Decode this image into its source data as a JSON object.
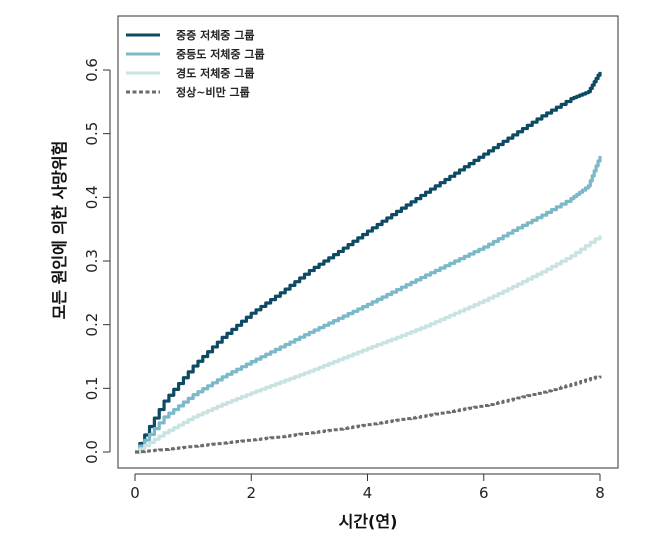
{
  "chart_data": {
    "type": "line",
    "title": "",
    "xlabel": "시간(연)",
    "ylabel": "모든 원인에 의한 사망위험",
    "xlim": [
      0,
      8
    ],
    "ylim": [
      0,
      0.6
    ],
    "x_ticks": [
      "0",
      "2",
      "4",
      "6",
      "8"
    ],
    "y_ticks": [
      "0.0",
      "0.1",
      "0.2",
      "0.3",
      "0.4",
      "0.5",
      "0.6"
    ],
    "legend_position": "top-left",
    "grid": false,
    "series": [
      {
        "name": "중증 저체중 그룹",
        "color": "#0d4a63",
        "dash": "solid",
        "x": [
          0,
          0.5,
          1,
          1.5,
          2,
          2.5,
          3,
          3.5,
          4,
          4.5,
          5,
          5.5,
          6,
          6.5,
          7,
          7.5,
          7.8,
          8
        ],
        "y": [
          0,
          0.08,
          0.135,
          0.18,
          0.218,
          0.25,
          0.285,
          0.315,
          0.347,
          0.378,
          0.408,
          0.438,
          0.468,
          0.498,
          0.528,
          0.555,
          0.566,
          0.597
        ]
      },
      {
        "name": "중등도 저체중 그룹",
        "color": "#7bb8c8",
        "dash": "solid",
        "x": [
          0,
          0.5,
          1,
          1.5,
          2,
          2.5,
          3,
          3.5,
          4,
          4.5,
          5,
          5.5,
          6,
          6.5,
          7,
          7.5,
          7.8,
          8
        ],
        "y": [
          0,
          0.055,
          0.09,
          0.118,
          0.142,
          0.165,
          0.188,
          0.21,
          0.232,
          0.255,
          0.278,
          0.3,
          0.322,
          0.348,
          0.372,
          0.398,
          0.418,
          0.465
        ]
      },
      {
        "name": "경도 저체중 그룹",
        "color": "#c9e3e3",
        "dash": "solid",
        "x": [
          0,
          0.5,
          1,
          1.5,
          2,
          2.5,
          3,
          3.5,
          4,
          4.5,
          5,
          5.5,
          6,
          6.5,
          7,
          7.5,
          8
        ],
        "y": [
          0,
          0.03,
          0.055,
          0.075,
          0.093,
          0.11,
          0.127,
          0.145,
          0.163,
          0.18,
          0.198,
          0.218,
          0.238,
          0.26,
          0.283,
          0.308,
          0.34
        ]
      },
      {
        "name": "정상~비만 그룹",
        "color": "#6b6b6b",
        "dash": "dashed",
        "x": [
          0,
          0.5,
          1,
          1.5,
          2,
          2.5,
          3,
          3.5,
          4,
          4.5,
          5,
          5.5,
          6,
          6.5,
          7,
          7.5,
          8
        ],
        "y": [
          0,
          0.004,
          0.009,
          0.014,
          0.019,
          0.024,
          0.03,
          0.036,
          0.043,
          0.05,
          0.057,
          0.065,
          0.073,
          0.083,
          0.094,
          0.106,
          0.12
        ]
      }
    ]
  }
}
